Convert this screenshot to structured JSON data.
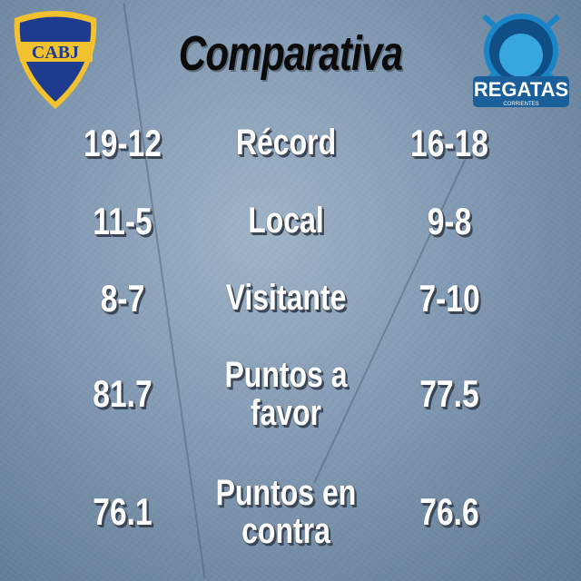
{
  "title": "Comparativa",
  "home_team": {
    "logo_text": "CABJ",
    "colors": {
      "primary": "#1d3b8f",
      "secondary": "#f2c12e"
    }
  },
  "away_team": {
    "logo_text": "REGATAS",
    "logo_subtext": "CORRIENTES",
    "colors": {
      "primary": "#1a86c8",
      "secondary": "#ffffff"
    }
  },
  "rows": [
    {
      "label": "Récord",
      "home": "19-12",
      "away": "16-18"
    },
    {
      "label": "Local",
      "home": "11-5",
      "away": "9-8"
    },
    {
      "label": "Visitante",
      "home": "8-7",
      "away": "7-10"
    },
    {
      "label_line1": "Puntos a",
      "label_line2": "favor",
      "home": "81.7",
      "away": "77.5"
    },
    {
      "label_line1": "Puntos en",
      "label_line2": "contra",
      "home": "76.1",
      "away": "76.6"
    }
  ]
}
